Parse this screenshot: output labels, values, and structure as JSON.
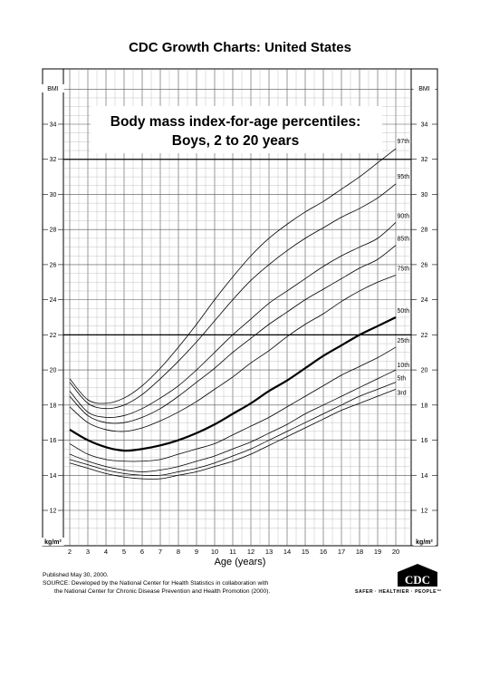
{
  "page": {
    "title": "CDC Growth Charts: United States",
    "published": "Published May 30, 2000.",
    "source_line1": "SOURCE: Developed by the National Center for Health Statistics in collaboration with",
    "source_line2": "the National Center for Chronic Disease Prevention and Health Promotion (2000).",
    "logo_text": "CDC",
    "slogan": "SAFER · HEALTHIER · PEOPLE™"
  },
  "chart_data": {
    "type": "line",
    "title_line1": "Body mass index-for-age percentiles:",
    "title_line2": "Boys, 2 to 20 years",
    "xlabel": "Age (years)",
    "ylabel_top": "BMI",
    "ylabel_bottom": "kg/m²",
    "xlim": [
      2,
      20
    ],
    "ylim": [
      11,
      36
    ],
    "x_ticks": [
      "2",
      "3",
      "4",
      "5",
      "6",
      "7",
      "8",
      "9",
      "10",
      "11",
      "12",
      "13",
      "14",
      "15",
      "16",
      "17",
      "18",
      "19",
      "20"
    ],
    "y_ticks": [
      12,
      14,
      16,
      18,
      20,
      22,
      24,
      26,
      28,
      30,
      32,
      34
    ],
    "grid": true,
    "x": [
      2,
      3,
      4,
      5,
      6,
      7,
      8,
      9,
      10,
      11,
      12,
      13,
      14,
      15,
      16,
      17,
      18,
      19,
      20
    ],
    "series": [
      {
        "name": "97th",
        "values": [
          19.5,
          18.3,
          18.1,
          18.4,
          19.1,
          20.1,
          21.3,
          22.6,
          24.0,
          25.3,
          26.5,
          27.5,
          28.3,
          29.0,
          29.6,
          30.3,
          31.0,
          31.8,
          32.6
        ]
      },
      {
        "name": "95th",
        "values": [
          19.3,
          18.1,
          17.8,
          18.0,
          18.6,
          19.5,
          20.5,
          21.6,
          22.8,
          24.0,
          25.1,
          26.0,
          26.8,
          27.5,
          28.1,
          28.7,
          29.2,
          29.8,
          30.6
        ]
      },
      {
        "name": "90th",
        "values": [
          18.8,
          17.6,
          17.3,
          17.4,
          17.8,
          18.4,
          19.1,
          20.0,
          21.0,
          22.0,
          22.9,
          23.8,
          24.5,
          25.2,
          25.9,
          26.5,
          27.0,
          27.5,
          28.4
        ]
      },
      {
        "name": "85th",
        "values": [
          18.5,
          17.4,
          17.0,
          17.0,
          17.3,
          17.8,
          18.5,
          19.3,
          20.1,
          21.0,
          21.8,
          22.6,
          23.3,
          24.0,
          24.6,
          25.2,
          25.8,
          26.3,
          27.1
        ]
      },
      {
        "name": "75th",
        "values": [
          17.9,
          17.0,
          16.6,
          16.5,
          16.7,
          17.1,
          17.6,
          18.2,
          18.9,
          19.6,
          20.4,
          21.1,
          21.9,
          22.6,
          23.2,
          23.9,
          24.5,
          25.0,
          25.4
        ]
      },
      {
        "name": "50th",
        "values": [
          16.6,
          16.0,
          15.6,
          15.4,
          15.5,
          15.7,
          16.0,
          16.4,
          16.9,
          17.5,
          18.1,
          18.8,
          19.4,
          20.1,
          20.8,
          21.4,
          22.0,
          22.5,
          23.0
        ]
      },
      {
        "name": "25th",
        "values": [
          15.8,
          15.2,
          14.9,
          14.8,
          14.8,
          14.9,
          15.2,
          15.5,
          15.8,
          16.3,
          16.8,
          17.3,
          17.9,
          18.5,
          19.1,
          19.7,
          20.2,
          20.7,
          21.3
        ]
      },
      {
        "name": "10th",
        "values": [
          15.2,
          14.8,
          14.5,
          14.3,
          14.2,
          14.3,
          14.5,
          14.8,
          15.1,
          15.5,
          15.9,
          16.4,
          16.9,
          17.5,
          18.0,
          18.5,
          19.0,
          19.5,
          20.0
        ]
      },
      {
        "name": "5th",
        "values": [
          14.9,
          14.6,
          14.3,
          14.1,
          14.0,
          14.0,
          14.2,
          14.4,
          14.7,
          15.1,
          15.5,
          16.0,
          16.5,
          17.0,
          17.5,
          18.0,
          18.5,
          18.9,
          19.3
        ]
      },
      {
        "name": "3rd",
        "values": [
          14.7,
          14.4,
          14.1,
          13.9,
          13.8,
          13.8,
          14.0,
          14.2,
          14.5,
          14.8,
          15.2,
          15.7,
          16.2,
          16.7,
          17.2,
          17.7,
          18.1,
          18.5,
          18.9
        ]
      }
    ],
    "bold_series": "50th"
  }
}
